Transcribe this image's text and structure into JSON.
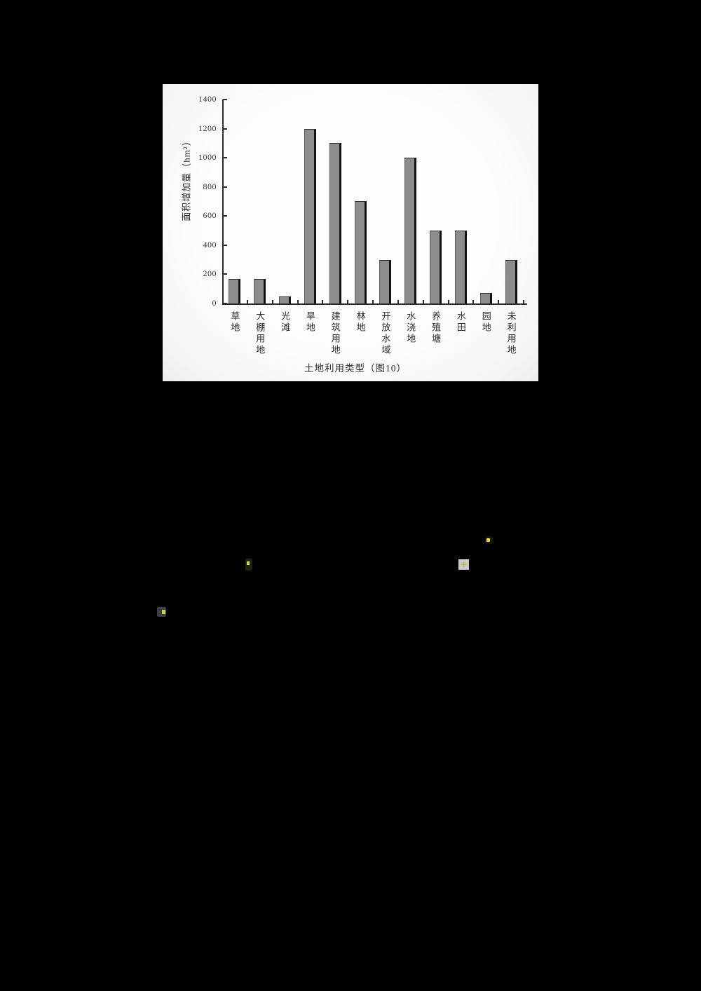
{
  "page": {
    "background_color": "#000000",
    "panel_background_color": "#fcfcfc"
  },
  "chart_data": {
    "type": "bar",
    "categories": [
      "草地",
      "大棚用地",
      "光滩",
      "旱地",
      "建筑用地",
      "林地",
      "开放水域",
      "水浇地",
      "养殖塘",
      "水田",
      "园地",
      "未利用地"
    ],
    "values": [
      170,
      170,
      50,
      1200,
      1100,
      700,
      300,
      1000,
      500,
      500,
      70,
      300
    ],
    "title": "",
    "xlabel": "土地利用类型（图10）",
    "ylabel": "面积增加量（hm²）",
    "ylim": [
      0,
      1400
    ],
    "yticks": [
      0,
      200,
      400,
      600,
      800,
      1000,
      1200,
      1400
    ],
    "grid": false,
    "legend": null,
    "bar_color": "#8c8c8c",
    "bar_edge_color": "#121212",
    "axis_color": "#2b2b2b"
  }
}
